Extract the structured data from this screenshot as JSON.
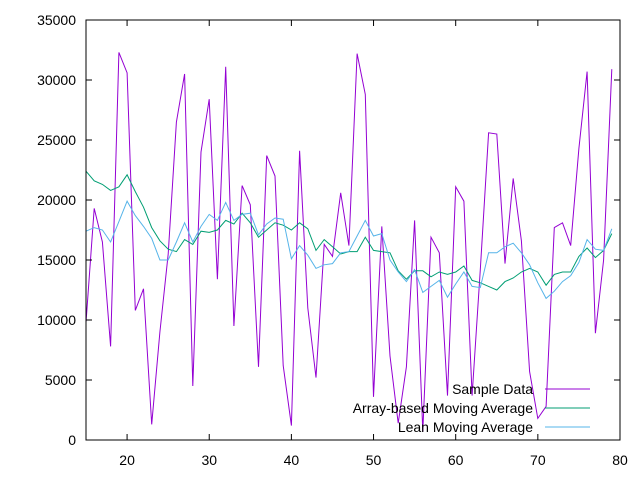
{
  "chart_data": {
    "type": "line",
    "title": "",
    "xlabel": "",
    "ylabel": "",
    "xlim": [
      15,
      80
    ],
    "ylim": [
      0,
      35000
    ],
    "grid": false,
    "legend_position": "bottom-right-inside",
    "x_ticks": [
      20,
      30,
      40,
      50,
      60,
      70,
      80
    ],
    "y_ticks": [
      0,
      5000,
      10000,
      15000,
      20000,
      25000,
      30000,
      35000
    ],
    "x": [
      15,
      16,
      17,
      18,
      19,
      20,
      21,
      22,
      23,
      24,
      25,
      26,
      27,
      28,
      29,
      30,
      31,
      32,
      33,
      34,
      35,
      36,
      37,
      38,
      39,
      40,
      41,
      42,
      43,
      44,
      45,
      46,
      47,
      48,
      49,
      50,
      51,
      52,
      53,
      54,
      55,
      56,
      57,
      58,
      59,
      60,
      61,
      62,
      63,
      64,
      65,
      66,
      67,
      68,
      69,
      70,
      71,
      72,
      73,
      74,
      75,
      76,
      77,
      78,
      79
    ],
    "series": [
      {
        "name": "Sample Data",
        "color": "#9400d3",
        "values": [
          9800,
          19300,
          16500,
          7800,
          32300,
          30600,
          10800,
          12600,
          1300,
          9000,
          15500,
          26500,
          30500,
          4500,
          24000,
          28400,
          13400,
          31100,
          9500,
          21200,
          19600,
          6100,
          23700,
          22000,
          6200,
          1200,
          24100,
          11000,
          5200,
          16300,
          15300,
          20600,
          16200,
          32200,
          28800,
          3600,
          17800,
          7000,
          1400,
          6100,
          18300,
          700,
          16900,
          15600,
          3700,
          21100,
          19900,
          3700,
          14200,
          25600,
          25500,
          14700,
          21800,
          16600,
          5700,
          1800,
          2800,
          17700,
          18100,
          16200,
          24300,
          30700,
          8900,
          15000,
          30900
        ]
      },
      {
        "name": "Array-based Moving Average",
        "color": "#009e73",
        "values": [
          22400,
          21600,
          21300,
          20800,
          21100,
          22100,
          20700,
          19400,
          17700,
          16600,
          15900,
          15700,
          16700,
          16300,
          17400,
          17300,
          17500,
          18300,
          18000,
          18900,
          18100,
          16900,
          17500,
          18100,
          17900,
          17500,
          18100,
          17600,
          15800,
          16700,
          16100,
          15500,
          15700,
          15700,
          16900,
          15800,
          15700,
          15600,
          14100,
          13400,
          14100,
          14100,
          13600,
          14000,
          13800,
          14000,
          14500,
          13300,
          13100,
          12800,
          12500,
          13200,
          13500,
          14000,
          14300,
          14000,
          12900,
          13800,
          14000,
          14000,
          15300,
          16000,
          15200,
          15800,
          17200
        ]
      },
      {
        "name": "Lean Moving Average",
        "color": "#56b4e9",
        "values": [
          17400,
          17700,
          17500,
          16500,
          18200,
          19900,
          18700,
          17800,
          16800,
          15000,
          15000,
          16500,
          18100,
          16500,
          17800,
          18800,
          18300,
          19800,
          18300,
          18800,
          18900,
          17100,
          18000,
          18500,
          18400,
          15100,
          16200,
          15400,
          14300,
          14600,
          14700,
          15600,
          15700,
          17000,
          18300,
          17000,
          17200,
          15000,
          14000,
          13200,
          14200,
          12300,
          12800,
          13300,
          11900,
          13000,
          14000,
          12800,
          12700,
          15600,
          15600,
          16100,
          16400,
          15600,
          14600,
          13100,
          11800,
          12400,
          13200,
          13700,
          14800,
          16700,
          15900,
          15800,
          17600
        ]
      }
    ]
  },
  "legend": {
    "items": [
      {
        "label": "Sample Data",
        "color": "#9400d3"
      },
      {
        "label": "Array-based Moving Average",
        "color": "#009e73"
      },
      {
        "label": "Lean Moving Average",
        "color": "#56b4e9"
      }
    ]
  },
  "axes": {
    "x_tick_labels": [
      "20",
      "30",
      "40",
      "50",
      "60",
      "70",
      "80"
    ],
    "y_tick_labels": [
      "0",
      "5000",
      "10000",
      "15000",
      "20000",
      "25000",
      "30000",
      "35000"
    ]
  }
}
